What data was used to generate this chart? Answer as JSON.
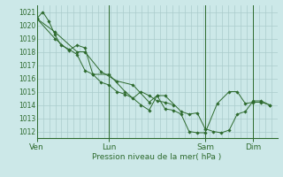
{
  "background_color": "#cce8e8",
  "plot_bg_color": "#cce8e8",
  "grid_color": "#aacccc",
  "line_color": "#2d6a2d",
  "marker_color": "#2d6a2d",
  "xlabel_text": "Pression niveau de la mer( hPa )",
  "ylim": [
    1011.5,
    1021.5
  ],
  "yticks": [
    1012,
    1013,
    1014,
    1015,
    1016,
    1017,
    1018,
    1019,
    1020,
    1021
  ],
  "xtick_labels": [
    "Ven",
    "Lun",
    "Sam",
    "Dim"
  ],
  "xtick_positions": [
    0.0,
    0.3,
    0.7,
    0.9
  ],
  "vline_positions": [
    0.0,
    0.3,
    0.7,
    0.9
  ],
  "series1_x": [
    0.0,
    0.025,
    0.05,
    0.075,
    0.1,
    0.133,
    0.167,
    0.2,
    0.233,
    0.267,
    0.3,
    0.333,
    0.367,
    0.4,
    0.433,
    0.467,
    0.5,
    0.533,
    0.567
  ],
  "series1_y": [
    1020.5,
    1021.0,
    1020.3,
    1019.3,
    1018.5,
    1018.2,
    1017.8,
    1016.6,
    1016.3,
    1015.7,
    1015.5,
    1015.0,
    1014.8,
    1014.5,
    1015.0,
    1014.7,
    1014.3,
    1014.2,
    1014.0
  ],
  "series2_x": [
    0.0,
    0.075,
    0.133,
    0.167,
    0.2,
    0.233,
    0.3,
    0.367,
    0.433,
    0.467,
    0.5,
    0.533,
    0.567,
    0.6,
    0.633,
    0.667,
    0.7,
    0.75,
    0.8,
    0.833,
    0.867,
    0.9,
    0.933,
    0.967
  ],
  "series2_y": [
    1020.5,
    1019.0,
    1018.1,
    1018.5,
    1018.3,
    1016.3,
    1016.3,
    1015.0,
    1014.0,
    1013.6,
    1014.7,
    1013.7,
    1013.6,
    1013.3,
    1012.0,
    1011.9,
    1011.9,
    1014.1,
    1015.0,
    1015.0,
    1014.1,
    1014.2,
    1014.2,
    1014.0
  ],
  "series3_x": [
    0.0,
    0.075,
    0.167,
    0.2,
    0.267,
    0.333,
    0.4,
    0.467,
    0.5,
    0.533,
    0.6,
    0.633,
    0.667,
    0.7,
    0.733,
    0.767,
    0.8,
    0.833,
    0.867,
    0.9,
    0.933,
    0.967
  ],
  "series3_y": [
    1020.5,
    1019.5,
    1018.0,
    1018.0,
    1016.5,
    1015.8,
    1015.5,
    1014.2,
    1014.7,
    1014.7,
    1013.5,
    1013.3,
    1013.4,
    1012.2,
    1012.0,
    1011.9,
    1012.1,
    1013.3,
    1013.5,
    1014.3,
    1014.3,
    1014.0
  ]
}
